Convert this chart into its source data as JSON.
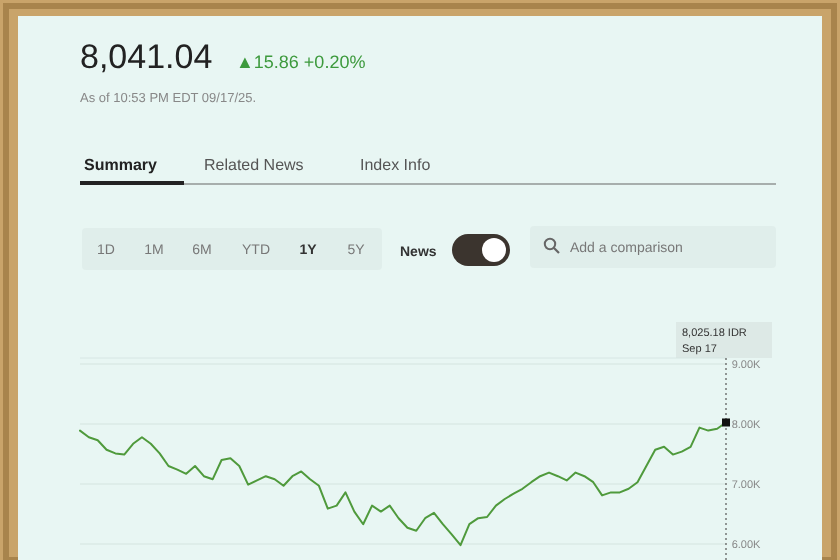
{
  "chart_data": {
    "type": "line",
    "title": "8,041.04",
    "subtitle": "As of 10:53 PM EDT 09/17/25.",
    "annotations": [
      "▲15.86 +0.20%",
      "Summary",
      "Related News",
      "Index Info",
      "1D",
      "1M",
      "6M",
      "YTD",
      "1Y",
      "5Y",
      "News",
      "Add a comparison",
      "8,025.18 IDR",
      "Sep 17"
    ],
    "categories": [
      null,
      null,
      null,
      null,
      null,
      null,
      null,
      null,
      null,
      null,
      null,
      null,
      null,
      null,
      null,
      null,
      null,
      null,
      null,
      null,
      null,
      null,
      null,
      null,
      null,
      null,
      null,
      null,
      null,
      null,
      null,
      null,
      null,
      null,
      null,
      null,
      null,
      null,
      null,
      null,
      null,
      null,
      null,
      null,
      null,
      null,
      null,
      null,
      null,
      null,
      null,
      null,
      null,
      null,
      null,
      null,
      null,
      null,
      null,
      null,
      null,
      null,
      null,
      null,
      null,
      null,
      null,
      null,
      null,
      null,
      null,
      null,
      null,
      null
    ],
    "series": [
      {
        "color": "#4f9a3c",
        "values": [
          7890,
          7780,
          7730,
          7570,
          7510,
          7490,
          7670,
          7780,
          7670,
          7510,
          7300,
          7240,
          7170,
          7300,
          7130,
          7080,
          7400,
          7430,
          7300,
          6990,
          7060,
          7130,
          7080,
          6970,
          7130,
          7210,
          7080,
          6970,
          6590,
          6640,
          6860,
          6540,
          6330,
          6640,
          6540,
          6640,
          6430,
          6270,
          6220,
          6430,
          6520,
          6330,
          6160,
          5980,
          6330,
          6430,
          6450,
          6640,
          6750,
          6840,
          6920,
          7030,
          7130,
          7190,
          7130,
          7060,
          7190,
          7130,
          7030,
          6810,
          6860,
          6860,
          6920,
          7030,
          7300,
          7570,
          7620,
          7490,
          7540,
          7620,
          7940,
          7890,
          7920,
          8025.18
        ]
      }
    ],
    "ylim": [
      5800,
      9100
    ],
    "yticks": [
      {
        "value": 6000,
        "label": "6.00K"
      },
      {
        "value": 7000,
        "label": "7.00K"
      },
      {
        "value": 8000,
        "label": "8.00K"
      },
      {
        "value": 9000,
        "label": "9.00K"
      }
    ],
    "grid": "y",
    "marker": "none",
    "line_style": "solid"
  }
}
